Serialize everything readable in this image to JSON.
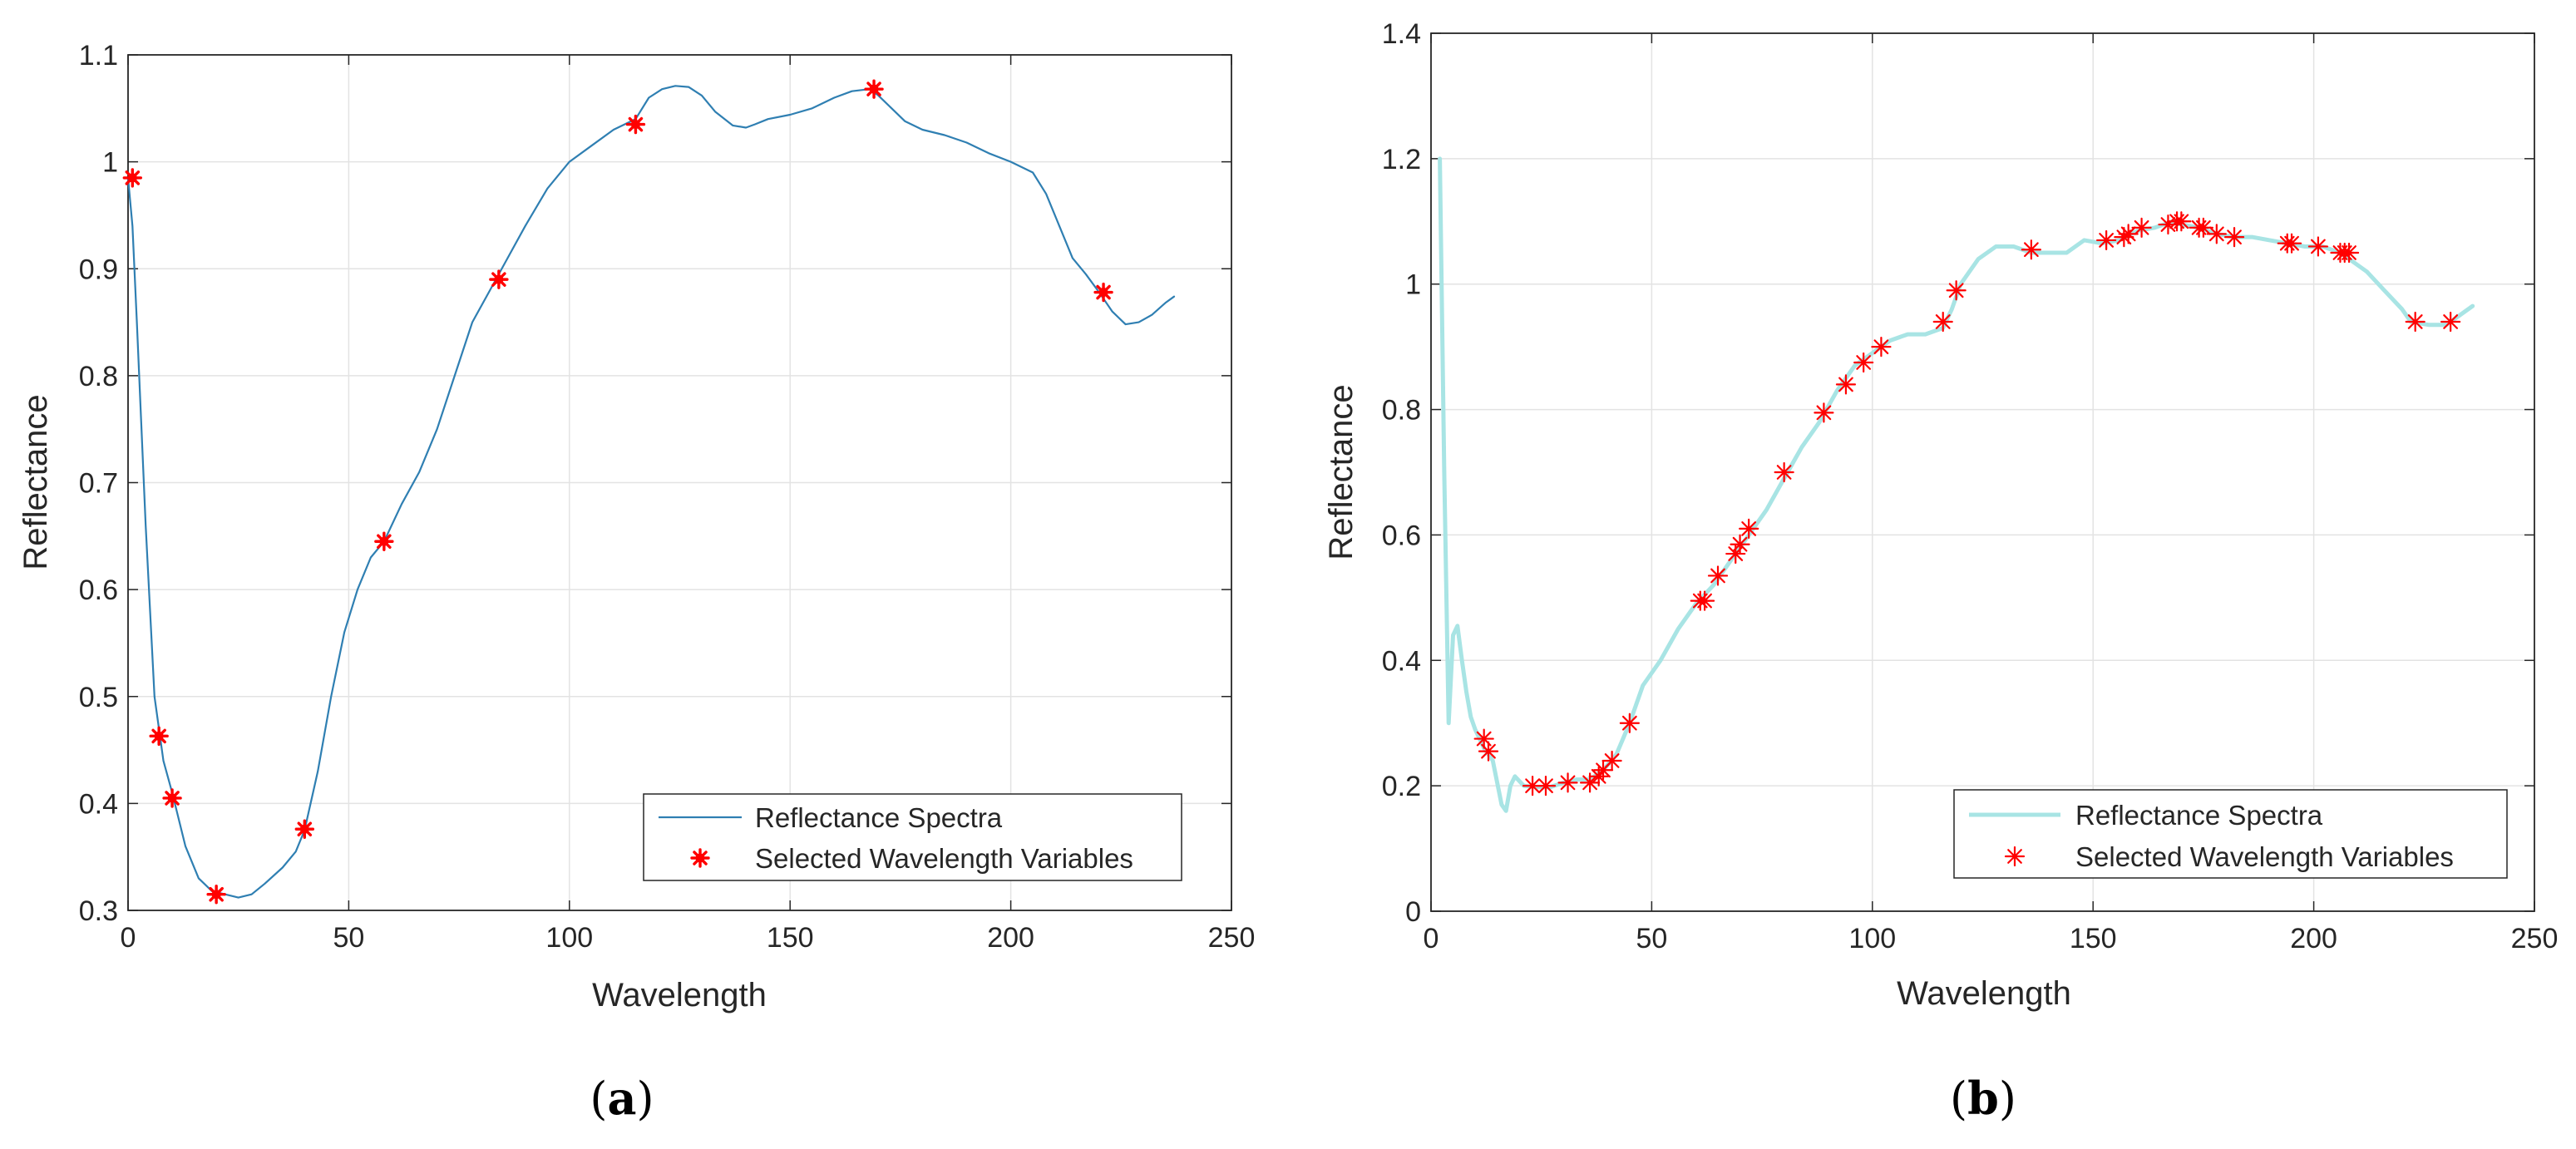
{
  "colors": {
    "grid": "#e3e3e3",
    "axis": "#262626",
    "marker": "#ff0000",
    "spectra_a": "#2f7fb2",
    "spectra_b": "#a8e4e4"
  },
  "chart_data": [
    {
      "type": "line",
      "caption_open": "(",
      "caption_letter": "a",
      "caption_close": ")",
      "xlabel": "Wavelength",
      "ylabel": "Reflectance",
      "xlim": [
        0,
        250
      ],
      "ylim": [
        0.3,
        1.1
      ],
      "xticks": [
        0,
        50,
        100,
        150,
        200,
        250
      ],
      "yticks": [
        0.3,
        0.4,
        0.5,
        0.6,
        0.7,
        0.8,
        0.9,
        1,
        1.1
      ],
      "ytick_labels": [
        "0.3",
        "0.4",
        "0.5",
        "0.6",
        "0.7",
        "0.8",
        "0.9",
        "1",
        "1.1"
      ],
      "grid": true,
      "legend_position": "bottom-right",
      "legend": [
        "Reflectance Spectra",
        "Selected Wavelength Variables"
      ],
      "series": [
        {
          "name": "Reflectance Spectra",
          "x": [
            0,
            1,
            2,
            4,
            6,
            8,
            10,
            13,
            16,
            19,
            22,
            25,
            28,
            31,
            35,
            38,
            40,
            43,
            46,
            49,
            52,
            55,
            58,
            62,
            66,
            70,
            74,
            78,
            82,
            86,
            90,
            95,
            100,
            105,
            110,
            115,
            118,
            121,
            124,
            127,
            130,
            133,
            137,
            140,
            142,
            145,
            150,
            155,
            160,
            164,
            168,
            170,
            173,
            176,
            180,
            185,
            190,
            195,
            200,
            205,
            208,
            211,
            214,
            217,
            220,
            223,
            226,
            229,
            232,
            235,
            237
          ],
          "y": [
            0.985,
            0.94,
            0.85,
            0.66,
            0.5,
            0.44,
            0.41,
            0.36,
            0.33,
            0.318,
            0.315,
            0.312,
            0.315,
            0.325,
            0.34,
            0.355,
            0.375,
            0.43,
            0.5,
            0.56,
            0.6,
            0.63,
            0.645,
            0.68,
            0.71,
            0.75,
            0.8,
            0.85,
            0.88,
            0.91,
            0.94,
            0.975,
            1.0,
            1.015,
            1.03,
            1.04,
            1.06,
            1.068,
            1.071,
            1.07,
            1.062,
            1.047,
            1.034,
            1.032,
            1.035,
            1.04,
            1.044,
            1.05,
            1.06,
            1.066,
            1.068,
            1.062,
            1.05,
            1.038,
            1.03,
            1.025,
            1.018,
            1.008,
            1.0,
            0.99,
            0.97,
            0.94,
            0.91,
            0.895,
            0.878,
            0.86,
            0.848,
            0.85,
            0.857,
            0.868,
            0.874
          ]
        },
        {
          "name": "Selected Wavelength Variables",
          "x": [
            1,
            7,
            10,
            20,
            40,
            58,
            84,
            115,
            169,
            221
          ],
          "y": [
            0.985,
            0.463,
            0.405,
            0.315,
            0.376,
            0.645,
            0.89,
            1.035,
            1.068,
            0.878
          ]
        }
      ]
    },
    {
      "type": "line",
      "caption_open": "(",
      "caption_letter": "b",
      "caption_close": ")",
      "xlabel": "Wavelength",
      "ylabel": "Reflectance",
      "xlim": [
        0,
        250
      ],
      "ylim": [
        0,
        1.4
      ],
      "xticks": [
        0,
        50,
        100,
        150,
        200,
        250
      ],
      "yticks": [
        0,
        0.2,
        0.4,
        0.6,
        0.8,
        1,
        1.2,
        1.4
      ],
      "ytick_labels": [
        "0",
        "0.2",
        "0.4",
        "0.6",
        "0.8",
        "1",
        "1.2",
        "1.4"
      ],
      "grid": true,
      "legend_position": "bottom-right",
      "legend": [
        "Reflectance Spectra",
        "Selected Wavelength Variables"
      ],
      "series": [
        {
          "name": "Reflectance Spectra",
          "x": [
            2,
            3,
            4,
            5,
            6,
            7,
            8,
            9,
            10,
            12,
            14,
            16,
            17,
            18,
            19,
            21,
            24,
            27,
            30,
            33,
            36,
            39,
            42,
            45,
            48,
            52,
            56,
            60,
            64,
            68,
            72,
            76,
            80,
            84,
            88,
            92,
            96,
            100,
            104,
            108,
            112,
            116,
            118,
            120,
            124,
            128,
            132,
            136,
            140,
            144,
            148,
            152,
            156,
            160,
            164,
            168,
            170,
            174,
            178,
            182,
            186,
            190,
            194,
            198,
            202,
            206,
            208,
            212,
            216,
            220,
            222,
            226,
            230,
            233,
            236
          ],
          "y": [
            1.2,
            0.7,
            0.3,
            0.44,
            0.455,
            0.4,
            0.35,
            0.31,
            0.29,
            0.26,
            0.24,
            0.17,
            0.16,
            0.2,
            0.215,
            0.2,
            0.198,
            0.198,
            0.205,
            0.21,
            0.21,
            0.225,
            0.25,
            0.3,
            0.36,
            0.4,
            0.45,
            0.49,
            0.52,
            0.56,
            0.6,
            0.64,
            0.69,
            0.74,
            0.78,
            0.83,
            0.87,
            0.89,
            0.91,
            0.92,
            0.92,
            0.93,
            0.96,
            1.0,
            1.04,
            1.06,
            1.06,
            1.05,
            1.05,
            1.05,
            1.07,
            1.065,
            1.07,
            1.085,
            1.09,
            1.1,
            1.095,
            1.09,
            1.08,
            1.075,
            1.075,
            1.07,
            1.065,
            1.06,
            1.06,
            1.05,
            1.04,
            1.02,
            0.99,
            0.96,
            0.94,
            0.935,
            0.935,
            0.95,
            0.965
          ]
        },
        {
          "name": "Selected Wavelength Variables",
          "x": [
            12,
            13,
            23,
            26,
            31,
            36,
            38,
            39,
            41,
            45,
            61,
            62,
            65,
            69,
            70,
            72,
            80,
            89,
            94,
            98,
            102,
            116,
            119,
            136,
            153,
            157,
            158,
            161,
            167,
            169,
            170,
            174,
            175,
            178,
            182,
            194,
            195,
            201,
            206,
            207,
            208,
            223,
            231
          ],
          "y": [
            0.275,
            0.255,
            0.2,
            0.2,
            0.205,
            0.205,
            0.215,
            0.225,
            0.24,
            0.3,
            0.495,
            0.495,
            0.535,
            0.57,
            0.585,
            0.61,
            0.7,
            0.795,
            0.84,
            0.875,
            0.9,
            0.94,
            0.99,
            1.055,
            1.07,
            1.075,
            1.08,
            1.09,
            1.095,
            1.1,
            1.1,
            1.09,
            1.09,
            1.08,
            1.075,
            1.065,
            1.065,
            1.06,
            1.05,
            1.05,
            1.05,
            0.94,
            0.94
          ]
        }
      ]
    }
  ]
}
